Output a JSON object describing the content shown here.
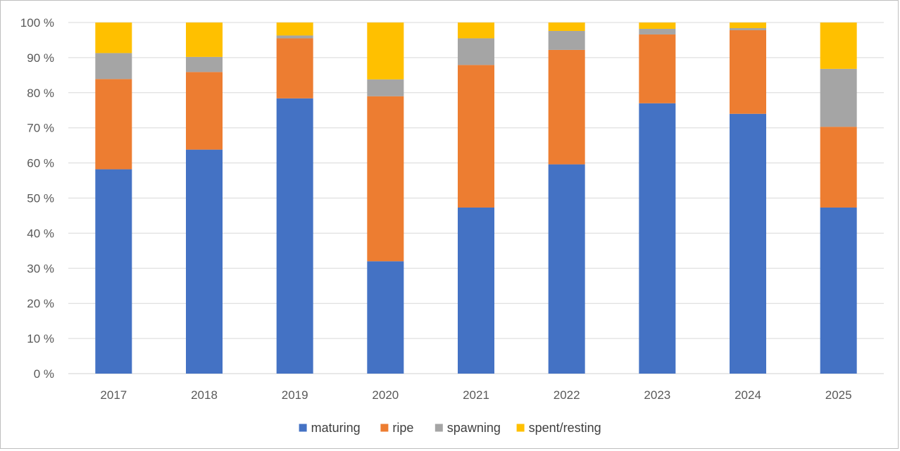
{
  "chart_data": {
    "type": "bar",
    "stacked": true,
    "categories": [
      "2017",
      "2018",
      "2019",
      "2020",
      "2021",
      "2022",
      "2023",
      "2024",
      "2025"
    ],
    "series": [
      {
        "name": "maturing",
        "color": "#4472c4",
        "values": [
          58.2,
          63.8,
          78.4,
          32.0,
          47.3,
          59.6,
          77.0,
          74.0,
          47.3
        ]
      },
      {
        "name": "ripe",
        "color": "#ed7d31",
        "values": [
          25.7,
          22.1,
          17.1,
          47.0,
          40.6,
          32.6,
          19.6,
          23.8,
          23.0
        ]
      },
      {
        "name": "spawning",
        "color": "#a5a5a5",
        "values": [
          7.4,
          4.3,
          0.8,
          4.8,
          7.6,
          5.4,
          1.6,
          0.6,
          16.5
        ]
      },
      {
        "name": "spent/resting",
        "color": "#ffc000",
        "values": [
          8.7,
          9.8,
          3.7,
          16.2,
          4.5,
          2.4,
          1.8,
          1.6,
          13.2
        ]
      }
    ],
    "yticks": [
      "0 %",
      "10 %",
      "20 %",
      "30 %",
      "40 %",
      "50 %",
      "60 %",
      "70 %",
      "80 %",
      "90 %",
      "100 %"
    ],
    "ylim": [
      0,
      100
    ],
    "grid": true,
    "legend_position": "bottom",
    "title": "",
    "xlabel": "",
    "ylabel": ""
  }
}
